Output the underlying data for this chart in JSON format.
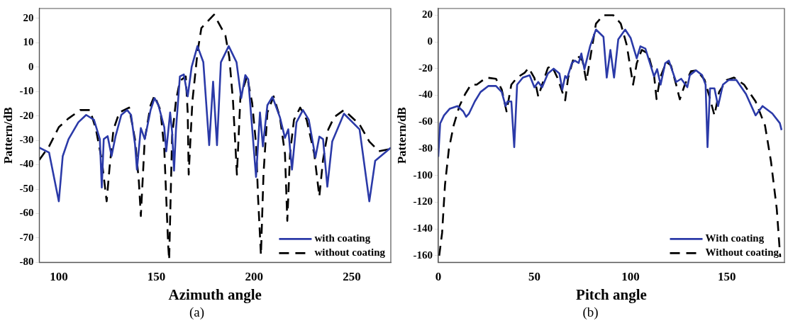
{
  "chart_data": [
    {
      "type": "line",
      "xlabel": "Azimuth angle",
      "ylabel": "Pattern/dB",
      "xlim": [
        90,
        270
      ],
      "ylim": [
        -80,
        24
      ],
      "xticks": [
        100,
        150,
        200,
        250
      ],
      "yticks": [
        20,
        10,
        0,
        -10,
        -20,
        -30,
        -40,
        -50,
        -60,
        -70,
        -80
      ],
      "grid": false,
      "legend": "bottom right",
      "marker": "none",
      "annotations": [
        "(a)"
      ],
      "series": [
        {
          "name": "with coating",
          "color": "#2b3aa8",
          "line_style": "solid",
          "x": [
            90,
            95,
            100,
            102,
            105,
            110,
            114,
            118,
            121,
            122,
            123,
            125,
            127,
            129,
            132,
            135,
            137,
            139,
            140,
            142,
            144,
            147,
            149,
            151,
            154,
            155,
            157,
            158,
            159,
            160,
            162,
            164,
            166,
            168,
            171,
            174,
            177,
            179,
            181,
            183,
            187,
            191,
            193.4,
            195.5,
            197,
            201,
            203,
            204.5,
            206.8,
            209.4,
            213.2,
            215.8,
            217.5,
            219.4,
            221.7,
            225,
            228,
            231.4,
            233.4,
            235.3,
            237.5,
            240,
            246,
            254,
            259,
            262,
            270
          ],
          "values": [
            -33,
            -35,
            -55,
            -36.5,
            -29.5,
            -22.6,
            -19.6,
            -21.6,
            -29.5,
            -49.3,
            -29.5,
            -28.3,
            -36.4,
            -28.5,
            -19.6,
            -17.6,
            -19.6,
            -31.5,
            -42,
            -25,
            -29.5,
            -17.6,
            -12.7,
            -15.6,
            -24.6,
            -34.5,
            -18.6,
            -26.5,
            -42.4,
            -25.5,
            -3.8,
            -3,
            -12,
            0,
            8.6,
            2,
            -32,
            -6,
            -32,
            2,
            8.6,
            2,
            -12.7,
            -3.3,
            -5,
            -45,
            -18.6,
            -32.5,
            -15.6,
            -12.2,
            -20.5,
            -29,
            -25.5,
            -42,
            -22.6,
            -17.6,
            -21.6,
            -37,
            -28.5,
            -29.5,
            -49,
            -30.5,
            -19.1,
            -25.5,
            -55,
            -38.4,
            -33
          ]
        },
        {
          "name": "without coating",
          "color": "#000000",
          "line_style": "dashed",
          "x": [
            90,
            95,
            100,
            105,
            111,
            116,
            119,
            122,
            124.5,
            126,
            128,
            131,
            136,
            139,
            141,
            142,
            144,
            147,
            149,
            152,
            154,
            156,
            156.5,
            158,
            160,
            162,
            165,
            166,
            166.5,
            168.4,
            171,
            173,
            179.5,
            185.3,
            187.3,
            189.2,
            191.2,
            193,
            196.4,
            199,
            201,
            202,
            203.5,
            204.8,
            206.8,
            210,
            213.2,
            215.8,
            217,
            218.4,
            220.4,
            223.6,
            226.9,
            230.8,
            233.4,
            235.3,
            238,
            241,
            246,
            254,
            259,
            263.9,
            270
          ],
          "values": [
            -38,
            -32.5,
            -24.6,
            -21,
            -17.6,
            -17.6,
            -25.5,
            -38,
            -55,
            -41,
            -25.5,
            -18.6,
            -16.6,
            -29.5,
            -47,
            -61,
            -29.5,
            -15.6,
            -11.7,
            -17.6,
            -33.5,
            -73,
            -79,
            -28.5,
            -13.7,
            -5.7,
            -3.8,
            -18.6,
            -44,
            -14,
            6,
            16,
            21.5,
            13,
            4,
            -14,
            -44,
            -12,
            -3.8,
            -14.7,
            -31.5,
            -53,
            -77,
            -44,
            -18.6,
            -12,
            -20.5,
            -35.5,
            -63,
            -35.5,
            -21.6,
            -16.6,
            -21.6,
            -35.5,
            -53,
            -38,
            -25.5,
            -20.5,
            -17.6,
            -23.5,
            -30.5,
            -34.5,
            -33.5
          ]
        }
      ]
    },
    {
      "type": "line",
      "xlabel": "Pitch angle",
      "ylabel": "Pattern/dB",
      "xlim": [
        0,
        180
      ],
      "ylim": [
        -165,
        25
      ],
      "xticks": [
        0,
        50,
        100,
        150
      ],
      "yticks": [
        20,
        0,
        -20,
        -40,
        -60,
        -80,
        -100,
        -120,
        -140,
        -160
      ],
      "grid": false,
      "legend": "bottom right",
      "marker": "none",
      "annotations": [
        "(b)"
      ],
      "series": [
        {
          "name": "With coating",
          "color": "#2b3aa8",
          "line_style": "solid",
          "x": [
            0,
            1,
            3,
            6,
            10,
            13,
            14.5,
            16,
            19,
            22,
            26,
            30,
            33,
            35,
            36,
            38,
            39.5,
            41,
            44,
            47.5,
            50,
            52,
            54,
            57,
            60,
            63,
            64.5,
            66,
            67,
            69.5,
            71,
            73,
            74.4,
            76,
            79,
            82,
            85.9,
            87.6,
            89.5,
            91.4,
            93.6,
            97.2,
            100,
            103.2,
            105.1,
            107.7,
            112.2,
            113.8,
            115.6,
            118,
            119.9,
            123.7,
            126.3,
            129.5,
            130.8,
            134,
            137.2,
            139,
            140,
            141.3,
            143.6,
            145.5,
            148,
            151,
            155,
            160,
            165,
            168.6,
            173.7,
            177.6,
            178.5
          ],
          "values": [
            -86,
            -61,
            -55,
            -50,
            -48,
            -52,
            -56,
            -53.6,
            -44.6,
            -37.5,
            -33,
            -33,
            -37.5,
            -48,
            -44.6,
            -44.6,
            -78.7,
            -32,
            -26.7,
            -25,
            -34,
            -30,
            -34,
            -23.6,
            -20,
            -23.6,
            -35.7,
            -25.5,
            -27.3,
            -15.8,
            -14,
            -15.8,
            -8.7,
            -20.4,
            -3,
            9.2,
            3.8,
            -26.7,
            -6,
            -26.7,
            2,
            9.2,
            3,
            -12.3,
            -3.3,
            -5,
            -25.8,
            -20.4,
            -32,
            -16,
            -14,
            -30,
            -27.6,
            -33.9,
            -24.9,
            -21.3,
            -24.9,
            -32,
            -78.7,
            -34.8,
            -34.8,
            -48,
            -32,
            -28.5,
            -28.5,
            -39,
            -55,
            -48,
            -53.6,
            -60.8,
            -66
          ]
        },
        {
          "name": "Without coating",
          "color": "#000000",
          "line_style": "dashed",
          "x": [
            0.5,
            2,
            3.5,
            5.5,
            8,
            11,
            14,
            17,
            20,
            25,
            30,
            33,
            35.5,
            38,
            41,
            45,
            47,
            50,
            52,
            54,
            57,
            59,
            62,
            66,
            67.5,
            70,
            72.5,
            75,
            77,
            79.5,
            82,
            85.9,
            91,
            94.9,
            98,
            101.3,
            103.2,
            105.8,
            109,
            112.2,
            113.5,
            115.4,
            118.6,
            121,
            123.7,
            125.6,
            128.2,
            131.4,
            134.6,
            138.5,
            141,
            143.6,
            146,
            150,
            153.8,
            159,
            165,
            169.9,
            173,
            176,
            177.8
          ],
          "values": [
            -160,
            -143,
            -107,
            -80.5,
            -62.6,
            -48,
            -39,
            -32,
            -32,
            -26.7,
            -27.6,
            -35.6,
            -52,
            -32,
            -26.7,
            -23,
            -19.5,
            -27,
            -41,
            -32,
            -19.5,
            -17.7,
            -27,
            -43.7,
            -27,
            -14,
            -10.5,
            -14,
            -29.5,
            -8,
            13.7,
            20,
            20,
            13.7,
            -2.4,
            -32,
            -16,
            -6,
            -8.7,
            -24.9,
            -42.8,
            -26.7,
            -15,
            -17.7,
            -32,
            -43,
            -32,
            -22,
            -21.3,
            -28.5,
            -41,
            -55,
            -37.5,
            -28.5,
            -26.7,
            -32,
            -44.6,
            -62.6,
            -89.5,
            -125,
            -161
          ]
        }
      ]
    }
  ]
}
